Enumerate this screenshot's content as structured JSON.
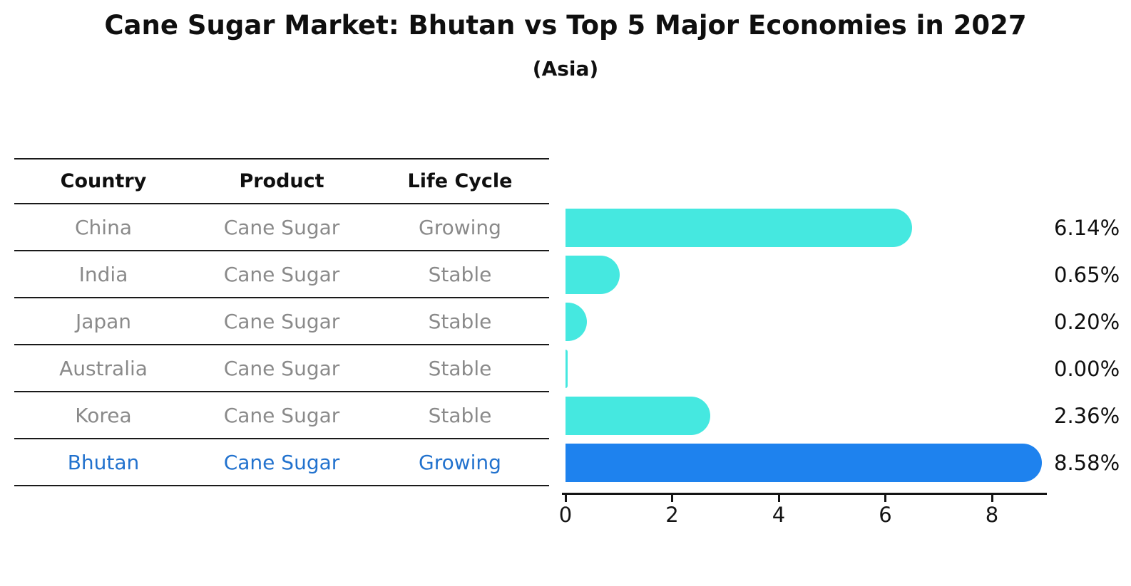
{
  "title": "Cane Sugar Market: Bhutan vs Top 5 Major Economies in 2027",
  "subtitle": "(Asia)",
  "table": {
    "headers": [
      "Country",
      "Product",
      "Life Cycle"
    ],
    "rows": [
      {
        "country": "China",
        "product": "Cane Sugar",
        "life_cycle": "Growing",
        "highlighted": false
      },
      {
        "country": "India",
        "product": "Cane Sugar",
        "life_cycle": "Stable",
        "highlighted": false
      },
      {
        "country": "Japan",
        "product": "Cane Sugar",
        "life_cycle": "Stable",
        "highlighted": false
      },
      {
        "country": "Australia",
        "product": "Cane Sugar",
        "life_cycle": "Stable",
        "highlighted": false
      },
      {
        "country": "Korea",
        "product": "Cane Sugar",
        "life_cycle": "Stable",
        "highlighted": false
      },
      {
        "country": "Bhutan",
        "product": "Cane Sugar",
        "life_cycle": "Growing",
        "highlighted": true
      }
    ]
  },
  "chart_data": {
    "type": "bar",
    "orientation": "horizontal",
    "title": "Cane Sugar Market: Bhutan vs Top 5 Major Economies in 2027 (Asia)",
    "categories": [
      "China",
      "India",
      "Japan",
      "Australia",
      "Korea",
      "Bhutan"
    ],
    "values": [
      6.14,
      0.65,
      0.2,
      0.0,
      2.36,
      8.58
    ],
    "value_labels": [
      "6.14%",
      "0.65%",
      "0.20%",
      "0.00%",
      "2.36%",
      "8.58%"
    ],
    "x_ticks": [
      "0",
      "2",
      "4",
      "6",
      "8"
    ],
    "xlim": [
      0,
      9
    ],
    "grid": false,
    "legend": false,
    "bar_color": "#45e8e0",
    "highlight_bar_color": "#1e82ee",
    "highlight_index": 5,
    "highlight_text_color": "#2272ce",
    "table_text_color": "#8a8a8a"
  }
}
